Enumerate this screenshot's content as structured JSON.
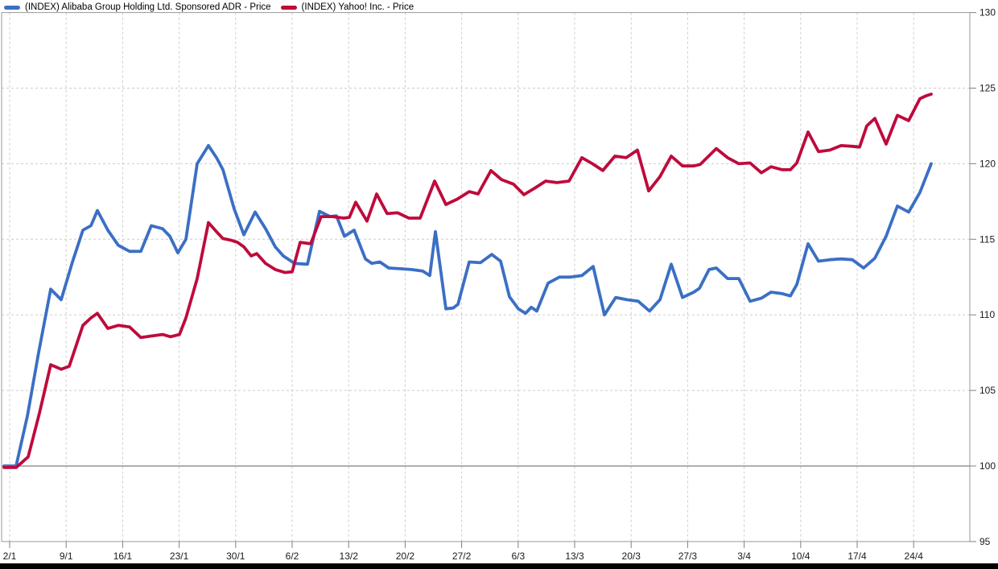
{
  "chart": {
    "legend": [
      {
        "label": "(INDEX) Alibaba Group Holding Ltd. Sponsored ADR - Price",
        "color": "#3B6FC4"
      },
      {
        "label": "(INDEX) Yahoo! Inc. - Price",
        "color": "#BE0B3C"
      }
    ]
  },
  "colors": {
    "background": "#FFFFFF",
    "grid": "#CCCCCC",
    "frame": "#999999",
    "baseline": "#808080",
    "tick": "#808080",
    "label": "#1A1A1A",
    "bottom_bar": "#000000"
  },
  "chart_data": {
    "type": "line",
    "title": "",
    "xlabel": "",
    "ylabel": "",
    "y_axis_side": "right",
    "y_ticks": [
      95,
      100,
      105,
      110,
      115,
      120,
      125,
      130
    ],
    "y_range": [
      95,
      130
    ],
    "baseline_value": 100,
    "grid": "dashed",
    "x_tick_labels": [
      "2/1",
      "9/1",
      "16/1",
      "23/1",
      "30/1",
      "6/2",
      "13/2",
      "20/2",
      "27/2",
      "6/3",
      "13/3",
      "20/3",
      "27/3",
      "3/4",
      "10/4",
      "17/4",
      "24/4"
    ],
    "x_unit_note": "points given as [x_position_px, indexed_price]",
    "series": [
      {
        "name": "(INDEX) Alibaba Group Holding Ltd. Sponsored ADR - Price",
        "color": "#3B6FC4",
        "points": [
          [
            5,
            100
          ],
          [
            20,
            100
          ],
          [
            34,
            103.3
          ],
          [
            48,
            107.5
          ],
          [
            63,
            111.7
          ],
          [
            76,
            111.0
          ],
          [
            90,
            113.5
          ],
          [
            103,
            115.6
          ],
          [
            113,
            115.9
          ],
          [
            121,
            116.9
          ],
          [
            134,
            115.6
          ],
          [
            147,
            114.6
          ],
          [
            161,
            114.2
          ],
          [
            175,
            114.2
          ],
          [
            188,
            115.9
          ],
          [
            202,
            115.7
          ],
          [
            211,
            115.2
          ],
          [
            221,
            114.1
          ],
          [
            231,
            115.0
          ],
          [
            245,
            120.0
          ],
          [
            259,
            121.2
          ],
          [
            269,
            120.4
          ],
          [
            277,
            119.6
          ],
          [
            291,
            117.0
          ],
          [
            303,
            115.3
          ],
          [
            317,
            116.8
          ],
          [
            330,
            115.7
          ],
          [
            342,
            114.5
          ],
          [
            352,
            113.9
          ],
          [
            366,
            113.4
          ],
          [
            382,
            113.35
          ],
          [
            397,
            116.85
          ],
          [
            410,
            116.5
          ],
          [
            418,
            116.55
          ],
          [
            428,
            115.2
          ],
          [
            440,
            115.6
          ],
          [
            454,
            113.7
          ],
          [
            462,
            113.4
          ],
          [
            472,
            113.5
          ],
          [
            483,
            113.1
          ],
          [
            497,
            113.05
          ],
          [
            511,
            113.0
          ],
          [
            525,
            112.9
          ],
          [
            534,
            112.6
          ],
          [
            541,
            115.5
          ],
          [
            554,
            110.4
          ],
          [
            563,
            110.45
          ],
          [
            569,
            110.7
          ],
          [
            583,
            113.5
          ],
          [
            597,
            113.45
          ],
          [
            611,
            114.0
          ],
          [
            622,
            113.55
          ],
          [
            633,
            111.2
          ],
          [
            644,
            110.4
          ],
          [
            653,
            110.1
          ],
          [
            660,
            110.5
          ],
          [
            667,
            110.25
          ],
          [
            681,
            112.1
          ],
          [
            695,
            112.5
          ],
          [
            709,
            112.5
          ],
          [
            723,
            112.6
          ],
          [
            737,
            113.2
          ],
          [
            751,
            110.0
          ],
          [
            765,
            111.15
          ],
          [
            779,
            111.0
          ],
          [
            793,
            110.9
          ],
          [
            807,
            110.25
          ],
          [
            820,
            111.0
          ],
          [
            834,
            113.35
          ],
          [
            848,
            111.15
          ],
          [
            862,
            111.5
          ],
          [
            869,
            111.75
          ],
          [
            881,
            113.0
          ],
          [
            890,
            113.1
          ],
          [
            904,
            112.4
          ],
          [
            918,
            112.4
          ],
          [
            932,
            110.9
          ],
          [
            946,
            111.1
          ],
          [
            958,
            111.5
          ],
          [
            972,
            111.4
          ],
          [
            982,
            111.25
          ],
          [
            990,
            112.0
          ],
          [
            1004,
            114.7
          ],
          [
            1017,
            113.55
          ],
          [
            1031,
            113.65
          ],
          [
            1045,
            113.7
          ],
          [
            1059,
            113.65
          ],
          [
            1073,
            113.1
          ],
          [
            1087,
            113.75
          ],
          [
            1101,
            115.2
          ],
          [
            1115,
            117.2
          ],
          [
            1129,
            116.8
          ],
          [
            1143,
            118.1
          ],
          [
            1157,
            120.0
          ]
        ]
      },
      {
        "name": "(INDEX) Yahoo! Inc. - Price",
        "color": "#BE0B3C",
        "points": [
          [
            5,
            99.9
          ],
          [
            20,
            99.9
          ],
          [
            35,
            100.6
          ],
          [
            49,
            103.5
          ],
          [
            63,
            106.7
          ],
          [
            76,
            106.4
          ],
          [
            86,
            106.6
          ],
          [
            103,
            109.3
          ],
          [
            113,
            109.8
          ],
          [
            121,
            110.1
          ],
          [
            134,
            109.1
          ],
          [
            147,
            109.3
          ],
          [
            161,
            109.2
          ],
          [
            175,
            108.5
          ],
          [
            188,
            108.6
          ],
          [
            202,
            108.7
          ],
          [
            212,
            108.55
          ],
          [
            223,
            108.7
          ],
          [
            231,
            109.8
          ],
          [
            245,
            112.4
          ],
          [
            259,
            116.1
          ],
          [
            269,
            115.5
          ],
          [
            277,
            115.05
          ],
          [
            286,
            114.95
          ],
          [
            295,
            114.8
          ],
          [
            303,
            114.5
          ],
          [
            312,
            113.9
          ],
          [
            319,
            114.05
          ],
          [
            330,
            113.4
          ],
          [
            342,
            113.0
          ],
          [
            354,
            112.8
          ],
          [
            363,
            112.85
          ],
          [
            373,
            114.8
          ],
          [
            386,
            114.7
          ],
          [
            399,
            116.5
          ],
          [
            413,
            116.5
          ],
          [
            427,
            116.4
          ],
          [
            434,
            116.45
          ],
          [
            442,
            117.45
          ],
          [
            456,
            116.2
          ],
          [
            468,
            118.0
          ],
          [
            481,
            116.7
          ],
          [
            494,
            116.75
          ],
          [
            508,
            116.4
          ],
          [
            522,
            116.4
          ],
          [
            540,
            118.85
          ],
          [
            554,
            117.3
          ],
          [
            568,
            117.65
          ],
          [
            583,
            118.15
          ],
          [
            594,
            118.0
          ],
          [
            610,
            119.55
          ],
          [
            623,
            118.95
          ],
          [
            638,
            118.65
          ],
          [
            651,
            117.95
          ],
          [
            665,
            118.4
          ],
          [
            678,
            118.85
          ],
          [
            692,
            118.75
          ],
          [
            707,
            118.85
          ],
          [
            723,
            120.4
          ],
          [
            736,
            120.0
          ],
          [
            749,
            119.55
          ],
          [
            764,
            120.5
          ],
          [
            778,
            120.4
          ],
          [
            792,
            120.9
          ],
          [
            806,
            118.2
          ],
          [
            820,
            119.15
          ],
          [
            834,
            120.5
          ],
          [
            848,
            119.85
          ],
          [
            862,
            119.85
          ],
          [
            870,
            119.95
          ],
          [
            890,
            121.0
          ],
          [
            904,
            120.4
          ],
          [
            918,
            120.0
          ],
          [
            932,
            120.05
          ],
          [
            946,
            119.4
          ],
          [
            958,
            119.8
          ],
          [
            972,
            119.6
          ],
          [
            982,
            119.6
          ],
          [
            990,
            120.05
          ],
          [
            1004,
            122.1
          ],
          [
            1017,
            120.8
          ],
          [
            1031,
            120.9
          ],
          [
            1045,
            121.2
          ],
          [
            1059,
            121.15
          ],
          [
            1068,
            121.1
          ],
          [
            1077,
            122.5
          ],
          [
            1087,
            123.0
          ],
          [
            1101,
            121.3
          ],
          [
            1115,
            123.2
          ],
          [
            1129,
            122.85
          ],
          [
            1143,
            124.3
          ],
          [
            1151,
            124.5
          ],
          [
            1157,
            124.6
          ]
        ]
      }
    ]
  }
}
